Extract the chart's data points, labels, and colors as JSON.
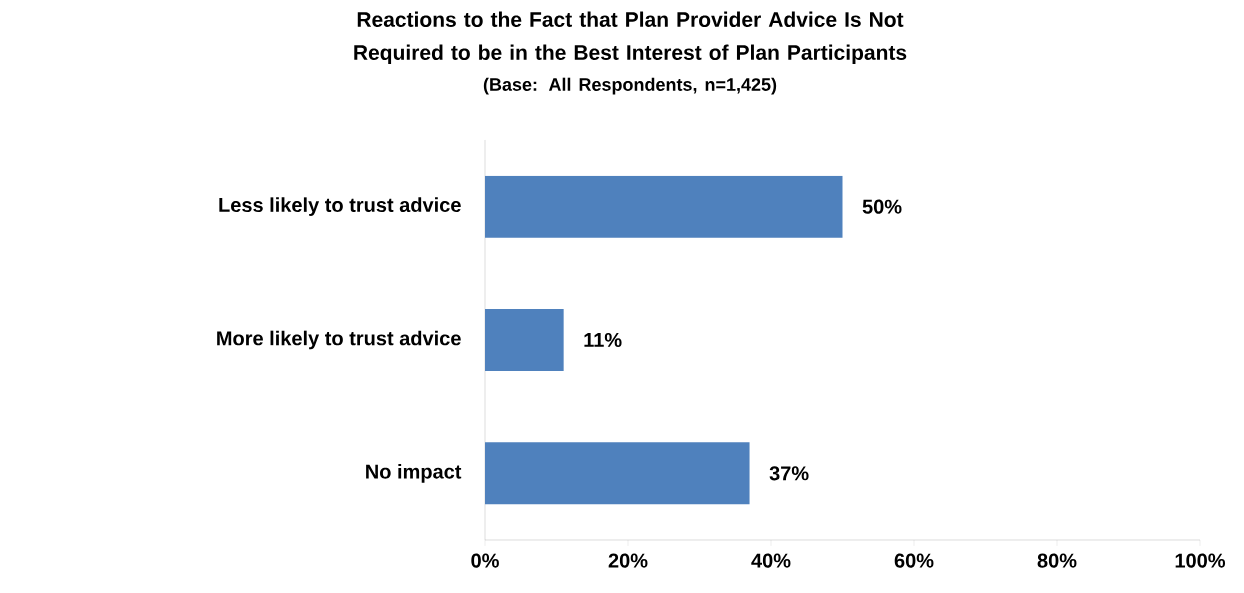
{
  "chart_data": {
    "type": "bar",
    "orientation": "horizontal",
    "title": "Reactions to the Fact that Plan Provider Advice Is Not Required to be in the Best Interest of Plan Participants",
    "subtitle": "(Base:  All Respondents, n=1,425)",
    "categories": [
      "Less likely to trust advice",
      "More likely to trust advice",
      "No impact"
    ],
    "values": [
      50,
      11,
      37
    ],
    "value_labels": [
      "50%",
      "11%",
      "37%"
    ],
    "color": "#4f81bd",
    "xlim": [
      0,
      100
    ],
    "xticks": [
      {
        "value": 0,
        "label": "0%"
      },
      {
        "value": 20,
        "label": "20%"
      },
      {
        "value": 40,
        "label": "40%"
      },
      {
        "value": 60,
        "label": "60%"
      },
      {
        "value": 80,
        "label": "80%"
      },
      {
        "value": 100,
        "label": "100%"
      }
    ]
  }
}
